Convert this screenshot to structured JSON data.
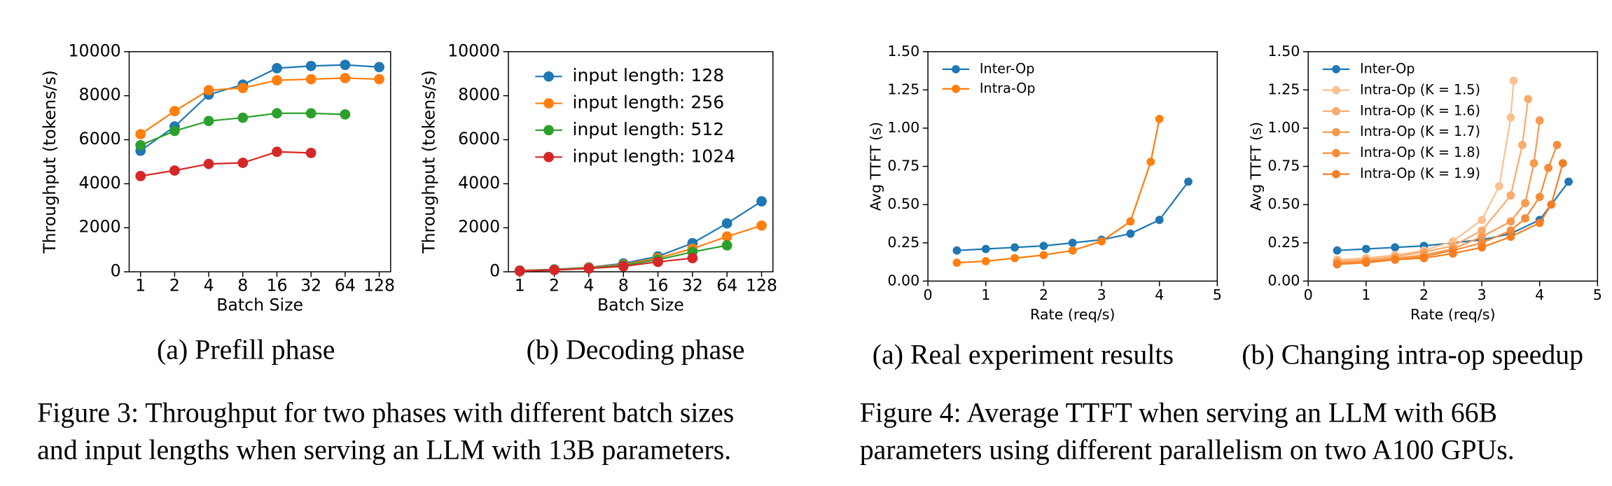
{
  "chart_data": [
    {
      "type": "line",
      "xlabel": "Batch Size",
      "ylabel": "Throughput (tokens/s)",
      "caption": "(a) Prefill phase",
      "categories": [
        "1",
        "2",
        "4",
        "8",
        "16",
        "32",
        "64",
        "128"
      ],
      "ylim": [
        0,
        10000
      ],
      "yticks": [
        0,
        2000,
        4000,
        6000,
        8000,
        10000
      ],
      "legend": false,
      "series": [
        {
          "color": "#1f77b4",
          "values": [
            5500,
            6600,
            8050,
            8500,
            9250,
            9350,
            9400,
            9300
          ]
        },
        {
          "color": "#ff7f0e",
          "values": [
            6250,
            7300,
            8250,
            8350,
            8700,
            8750,
            8800,
            8750
          ]
        },
        {
          "color": "#2ca02c",
          "values": [
            5750,
            6400,
            6850,
            7000,
            7200,
            7200,
            7150,
            null
          ]
        },
        {
          "color": "#d62728",
          "values": [
            4350,
            4600,
            4900,
            4950,
            5450,
            5400,
            null,
            null
          ]
        }
      ]
    },
    {
      "type": "line",
      "xlabel": "Batch Size",
      "ylabel": "Throughput (tokens/s)",
      "caption": "(b) Decoding phase",
      "categories": [
        "1",
        "2",
        "4",
        "8",
        "16",
        "32",
        "64",
        "128"
      ],
      "ylim": [
        0,
        10000
      ],
      "yticks": [
        0,
        2000,
        4000,
        6000,
        8000,
        10000
      ],
      "legend": "upper left",
      "series": [
        {
          "name": "input length: 128",
          "color": "#1f77b4",
          "values": [
            60,
            110,
            200,
            380,
            700,
            1300,
            2200,
            3200
          ]
        },
        {
          "name": "input length: 256",
          "color": "#ff7f0e",
          "values": [
            50,
            100,
            190,
            330,
            620,
            1050,
            1600,
            2100
          ]
        },
        {
          "name": "input length: 512",
          "color": "#2ca02c",
          "values": [
            40,
            90,
            170,
            300,
            550,
            900,
            1200,
            null
          ]
        },
        {
          "name": "input length: 1024",
          "color": "#d62728",
          "values": [
            30,
            80,
            150,
            250,
            450,
            620,
            null,
            null
          ]
        }
      ]
    },
    {
      "type": "line",
      "xlabel": "Rate (req/s)",
      "ylabel": "Avg TTFT (s)",
      "caption": "(a) Real experiment results",
      "xlim": [
        0,
        5
      ],
      "xticks": [
        0,
        1,
        2,
        3,
        4,
        5
      ],
      "ylim": [
        0,
        1.5
      ],
      "yticks": [
        {
          "value": 0,
          "label": "0.00"
        },
        {
          "value": 0.25,
          "label": "0.25"
        },
        {
          "value": 0.5,
          "label": "0.50"
        },
        {
          "value": 0.75,
          "label": "0.75"
        },
        {
          "value": 1,
          "label": "1.00"
        },
        {
          "value": 1.25,
          "label": "1.25"
        },
        {
          "value": 1.5,
          "label": "1.50"
        }
      ],
      "legend": "upper left",
      "series": [
        {
          "name": "Inter-Op",
          "color": "#1f77b4",
          "x": [
            0.5,
            1,
            1.5,
            2,
            2.5,
            3,
            3.5,
            4,
            4.5
          ],
          "values": [
            0.2,
            0.21,
            0.22,
            0.23,
            0.25,
            0.27,
            0.31,
            0.4,
            0.65
          ]
        },
        {
          "name": "Intra-Op",
          "color": "#ff7f0e",
          "x": [
            0.5,
            1,
            1.5,
            2,
            2.5,
            3,
            3.5,
            3.85,
            4
          ],
          "values": [
            0.12,
            0.13,
            0.15,
            0.17,
            0.2,
            0.26,
            0.39,
            0.78,
            1.06
          ]
        }
      ]
    },
    {
      "type": "line",
      "xlabel": "Rate (req/s)",
      "ylabel": "Avg TTFT (s)",
      "caption": "(b) Changing intra-op speedup",
      "xlim": [
        0,
        5
      ],
      "xticks": [
        0,
        1,
        2,
        3,
        4,
        5
      ],
      "ylim": [
        0,
        1.5
      ],
      "yticks": [
        {
          "value": 0,
          "label": "0.00"
        },
        {
          "value": 0.25,
          "label": "0.25"
        },
        {
          "value": 0.5,
          "label": "0.50"
        },
        {
          "value": 0.75,
          "label": "0.75"
        },
        {
          "value": 1,
          "label": "1.00"
        },
        {
          "value": 1.25,
          "label": "1.25"
        },
        {
          "value": 1.5,
          "label": "1.50"
        }
      ],
      "legend": "upper left",
      "series": [
        {
          "name": "Inter-Op",
          "color": "#1f77b4",
          "x": [
            0.5,
            1,
            1.5,
            2,
            2.5,
            3,
            3.5,
            4,
            4.5
          ],
          "values": [
            0.2,
            0.21,
            0.22,
            0.23,
            0.25,
            0.27,
            0.31,
            0.4,
            0.65
          ]
        },
        {
          "name": "Intra-Op (K = 1.5)",
          "color": "#fcc08f",
          "x": [
            0.5,
            1,
            1.5,
            2,
            2.5,
            3,
            3.3,
            3.5,
            3.55
          ],
          "values": [
            0.14,
            0.15,
            0.17,
            0.2,
            0.26,
            0.4,
            0.62,
            1.07,
            1.31
          ]
        },
        {
          "name": "Intra-Op (K = 1.6)",
          "color": "#faab6b",
          "x": [
            0.5,
            1,
            1.5,
            2,
            2.5,
            3,
            3.5,
            3.7,
            3.8
          ],
          "values": [
            0.13,
            0.14,
            0.16,
            0.19,
            0.23,
            0.33,
            0.56,
            0.89,
            1.19
          ]
        },
        {
          "name": "Intra-Op (K = 1.7)",
          "color": "#f89a4f",
          "x": [
            0.5,
            1,
            1.5,
            2,
            2.5,
            3,
            3.5,
            3.75,
            3.9,
            4
          ],
          "values": [
            0.12,
            0.13,
            0.15,
            0.17,
            0.21,
            0.29,
            0.39,
            0.51,
            0.77,
            1.05
          ]
        },
        {
          "name": "Intra-Op (K = 1.8)",
          "color": "#f68b37",
          "x": [
            0.5,
            1,
            1.5,
            2,
            2.5,
            3,
            3.5,
            3.75,
            4,
            4.15,
            4.3
          ],
          "values": [
            0.11,
            0.13,
            0.14,
            0.16,
            0.2,
            0.25,
            0.33,
            0.41,
            0.55,
            0.74,
            0.89
          ]
        },
        {
          "name": "Intra-Op (K = 1.9)",
          "color": "#f47f22",
          "x": [
            0.5,
            1,
            1.5,
            2,
            2.5,
            3,
            3.5,
            4,
            4.2,
            4.4
          ],
          "values": [
            0.11,
            0.12,
            0.14,
            0.15,
            0.18,
            0.22,
            0.29,
            0.38,
            0.5,
            0.77
          ]
        }
      ]
    }
  ],
  "figures": [
    {
      "caption": [
        "Figure 3: Throughput for two phases with different batch sizes",
        "and input lengths when serving an LLM with 13B parameters."
      ]
    },
    {
      "caption": [
        "Figure 4: Average TTFT when serving an LLM with 66B",
        "parameters using different parallelism on two A100 GPUs."
      ]
    }
  ]
}
